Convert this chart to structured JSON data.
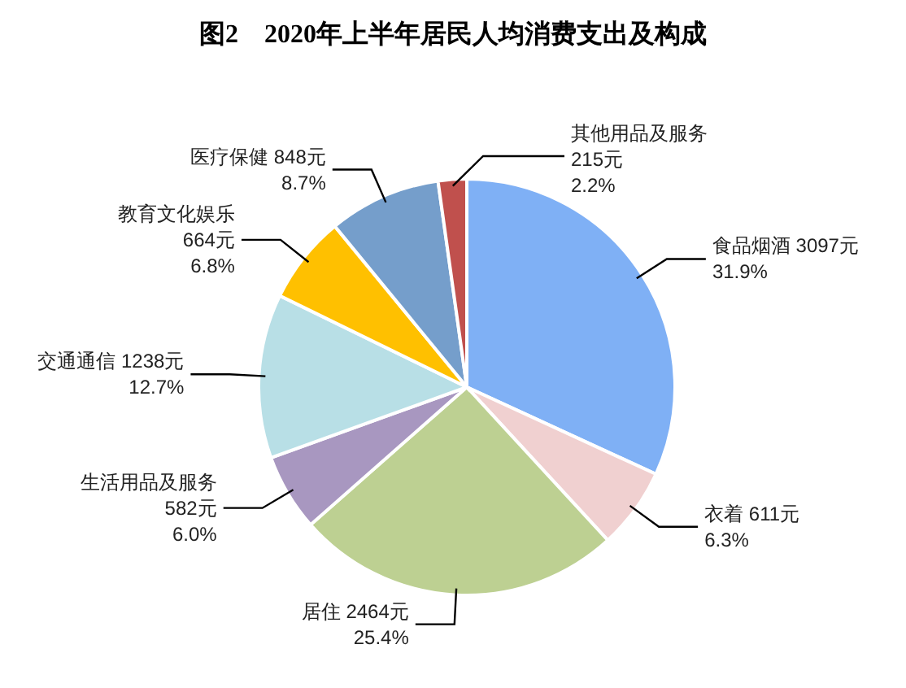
{
  "chart_data": {
    "type": "pie",
    "title": "图2　2020年上半年居民人均消费支出及构成",
    "categories": [
      "食品烟酒",
      "衣着",
      "居住",
      "生活用品及服务",
      "交通通信",
      "教育文化娱乐",
      "医疗保健",
      "其他用品及服务"
    ],
    "values": [
      3097,
      611,
      2464,
      582,
      1238,
      664,
      848,
      215
    ],
    "value_labels": [
      "3097元\n31.9%",
      "611元\n6.3%",
      "2464元\n25.4%",
      "582元\n6.0%",
      "1238元\n12.7%",
      "664元\n6.8%",
      "848元\n8.7%",
      "215元\n2.2%"
    ],
    "colors": [
      "#7fb0f5",
      "#f0d0d0",
      "#bdd092",
      "#a897c0",
      "#b8dfe6",
      "#ffc000",
      "#759ecb",
      "#c0504d"
    ]
  }
}
